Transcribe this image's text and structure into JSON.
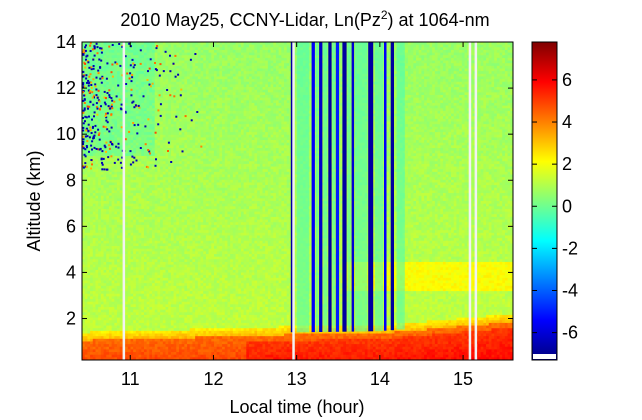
{
  "chart_data": {
    "type": "heatmap",
    "title": {
      "prefix": "2010 May25, CCNY-Lidar, Ln(Pz",
      "superscript": "2",
      "suffix": ") at 1064-nm"
    },
    "xlabel": "Local time (hour)",
    "ylabel": "Altitude (km)",
    "xlim": [
      10.42,
      15.6
    ],
    "ylim": [
      0.2,
      14
    ],
    "xticks": [
      11,
      12,
      13,
      14,
      15
    ],
    "yticks": [
      2,
      4,
      6,
      8,
      10,
      12,
      14
    ],
    "colorbar": {
      "range": [
        -7.3,
        7.8
      ],
      "ticks": [
        6,
        4,
        2,
        0,
        -2,
        -4,
        -6
      ],
      "tick_labels": [
        "6",
        "4",
        "2",
        "0",
        "-2",
        "-4",
        "-6"
      ],
      "colormap": "jet",
      "colors": [
        "#00007f",
        "#0000ff",
        "#007fff",
        "#00ffff",
        "#7fff7f",
        "#ffff00",
        "#ff7f00",
        "#ff0000",
        "#7f0000"
      ]
    },
    "features": {
      "boundary_layer_top_km": [
        [
          10.42,
          1.05
        ],
        [
          11.0,
          1.1
        ],
        [
          12.0,
          1.2
        ],
        [
          12.9,
          1.3
        ],
        [
          13.0,
          1.3
        ],
        [
          14.0,
          1.35
        ],
        [
          14.5,
          1.5
        ],
        [
          15.6,
          1.85
        ]
      ],
      "aerosol_layer_km": [
        3.2,
        4.5
      ],
      "missing_data_hours": [
        10.92,
        12.96,
        15.08,
        15.15
      ]
    },
    "tick_label_list": {
      "x": [
        "11",
        "12",
        "13",
        "14",
        "15"
      ],
      "y": [
        "2",
        "4",
        "6",
        "8",
        "10",
        "12",
        "14"
      ]
    }
  }
}
